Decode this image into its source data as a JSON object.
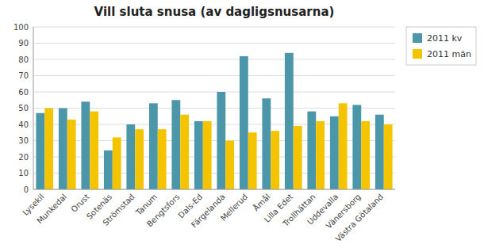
{
  "chart_data": {
    "type": "bar",
    "title": "Vill sluta snusa (av dagligsnusarna)",
    "categories": [
      "Lysekil",
      "Munkedal",
      "Orust",
      "Sotenäs",
      "Strömstad",
      "Tanum",
      "Bengtsfors",
      "Dals-Ed",
      "Färgelanda",
      "Mellerud",
      "Åmål",
      "Lilla Edet",
      "Trollhättan",
      "Uddevalla",
      "Vänersborg",
      "Västra Götaland"
    ],
    "series": [
      {
        "name": "2011 kv",
        "color": "#4b96a8",
        "values": [
          47,
          50,
          54,
          24,
          40,
          53,
          55,
          42,
          60,
          82,
          56,
          84,
          48,
          45,
          52,
          46
        ]
      },
      {
        "name": "2011 män",
        "color": "#f5c400",
        "values": [
          50,
          43,
          48,
          32,
          37,
          37,
          46,
          42,
          30,
          35,
          36,
          39,
          42,
          53,
          42,
          40
        ]
      }
    ],
    "ylim": [
      0,
      100
    ],
    "yticks": [
      0,
      10,
      20,
      30,
      40,
      50,
      60,
      70,
      80,
      90,
      100
    ],
    "grid": true,
    "legend": "upper-right"
  }
}
